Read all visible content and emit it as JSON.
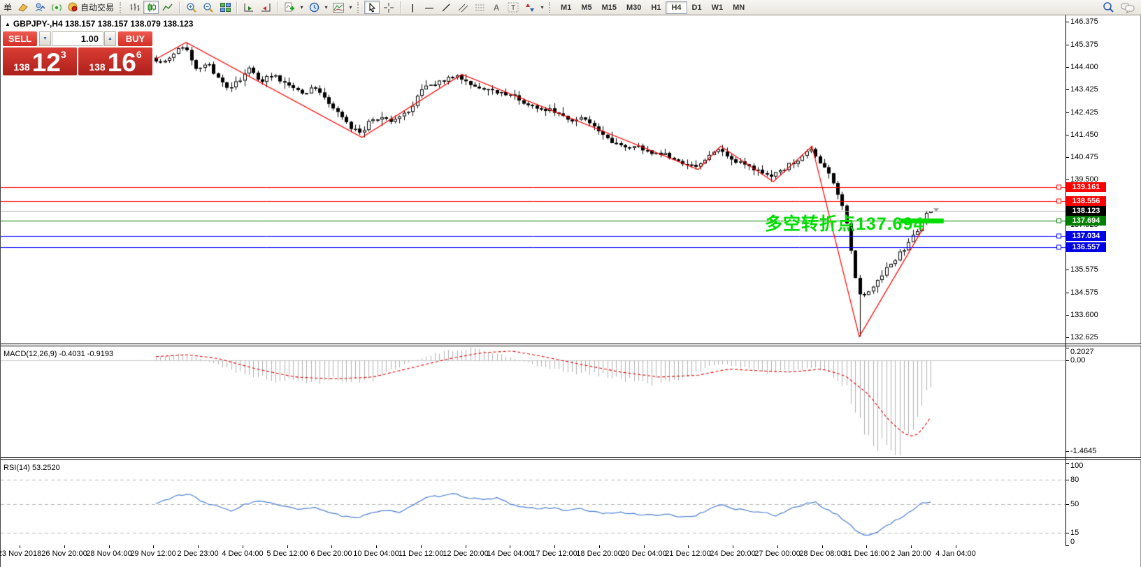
{
  "toolbar": {
    "left_label": "单",
    "auto_trading_label": "自动交易",
    "timeframes": [
      "M1",
      "M5",
      "M15",
      "M30",
      "H1",
      "H4",
      "D1",
      "W1",
      "MN"
    ],
    "active_timeframe": "H4"
  },
  "icons": {
    "collapse": "▲",
    "dropdown": "▾",
    "spinner_down": "▼",
    "spinner_up": "▲",
    "vline": "|",
    "hline": "―",
    "trendline": "/",
    "text_tool": "A",
    "label_tool": "T"
  },
  "chart": {
    "title": "GBPJPY-,H4  138.157 138.157 138.079 138.123"
  },
  "trade_panel": {
    "sell_label": "SELL",
    "buy_label": "BUY",
    "volume": "1.00",
    "sell_price": {
      "big": "138",
      "main": "12",
      "sup": "3"
    },
    "buy_price": {
      "big": "138",
      "main": "16",
      "sup": "6"
    }
  },
  "annotation": {
    "text": "多空转折点137.694",
    "color": "#00dd00"
  },
  "macd_panel": {
    "label": "MACD(12,26,9) -0.4031 -0.9193"
  },
  "rsi_panel": {
    "label": "RSI(14) 53.2520"
  },
  "levels": [
    {
      "label": "139.161",
      "value": 139.161,
      "line_color": "#ff0000",
      "badge_color": "#ff0000",
      "current": false
    },
    {
      "label": "138.556",
      "value": 138.556,
      "line_color": "#ff0000",
      "badge_color": "#ff0000",
      "current": false
    },
    {
      "label": "138.123",
      "value": 138.123,
      "line_color": "#b4b4b4",
      "badge_color": "#000000",
      "current": true
    },
    {
      "label": "137.694",
      "value": 137.694,
      "line_color": "#008000",
      "badge_color": "#008000",
      "current": false
    },
    {
      "label": "137.034",
      "value": 137.034,
      "line_color": "#0000ff",
      "badge_color": "#0000e6",
      "current": false
    },
    {
      "label": "136.557",
      "value": 136.557,
      "line_color": "#0000ff",
      "badge_color": "#0000e6",
      "current": false
    }
  ],
  "time_axis": [
    "23 Nov 2018",
    "26 Nov 20:00",
    "28 Nov 04:00",
    "29 Nov 12:00",
    "2 Dec 23:00",
    "4 Dec 04:00",
    "5 Dec 12:00",
    "6 Dec 20:00",
    "10 Dec 04:00",
    "11 Dec 12:00",
    "12 Dec 20:00",
    "14 Dec 04:00",
    "17 Dec 12:00",
    "18 Dec 20:00",
    "20 Dec 04:00",
    "21 Dec 12:00",
    "24 Dec 20:00",
    "27 Dec 00:00",
    "28 Dec 08:00",
    "31 Dec 16:00",
    "2 Jan 20:00",
    "4 Jan 04:00"
  ],
  "chart_data": {
    "type": "candlestick",
    "symbol": "GBPJPY-",
    "timeframe": "H4",
    "ohlc_readout": {
      "open": 138.157,
      "high": 138.157,
      "low": 138.079,
      "close": 138.123
    },
    "current_price": 138.123,
    "price_range": [
      132.625,
      146.375
    ],
    "price_ticks": [
      146.375,
      145.375,
      144.4,
      143.425,
      142.425,
      141.45,
      140.475,
      139.5,
      137.525,
      135.575,
      134.575,
      133.6,
      132.625
    ],
    "horizontal_levels": [
      139.161,
      138.556,
      138.123,
      137.694,
      137.034,
      136.557
    ],
    "turning_point": 137.694,
    "price_anchors": [
      [
        0,
        144.8
      ],
      [
        0.012,
        144.55
      ],
      [
        0.025,
        144.95
      ],
      [
        0.039,
        145.35
      ],
      [
        0.051,
        144.4
      ],
      [
        0.07,
        144.55
      ],
      [
        0.087,
        143.7
      ],
      [
        0.097,
        143.3
      ],
      [
        0.111,
        143.9
      ],
      [
        0.123,
        144.3
      ],
      [
        0.138,
        143.85
      ],
      [
        0.156,
        143.95
      ],
      [
        0.174,
        143.55
      ],
      [
        0.192,
        143.3
      ],
      [
        0.21,
        143.5
      ],
      [
        0.224,
        142.9
      ],
      [
        0.242,
        142.3
      ],
      [
        0.251,
        141.75
      ],
      [
        0.266,
        141.5
      ],
      [
        0.278,
        142.0
      ],
      [
        0.291,
        142.2
      ],
      [
        0.305,
        141.95
      ],
      [
        0.319,
        142.3
      ],
      [
        0.332,
        142.6
      ],
      [
        0.346,
        143.4
      ],
      [
        0.359,
        143.6
      ],
      [
        0.377,
        143.9
      ],
      [
        0.395,
        144.0
      ],
      [
        0.409,
        143.7
      ],
      [
        0.422,
        143.45
      ],
      [
        0.431,
        143.55
      ],
      [
        0.445,
        143.2
      ],
      [
        0.458,
        143.3
      ],
      [
        0.472,
        142.9
      ],
      [
        0.486,
        142.7
      ],
      [
        0.499,
        142.55
      ],
      [
        0.513,
        142.6
      ],
      [
        0.526,
        142.3
      ],
      [
        0.54,
        142.1
      ],
      [
        0.553,
        142.2
      ],
      [
        0.567,
        141.8
      ],
      [
        0.58,
        141.4
      ],
      [
        0.594,
        141.1
      ],
      [
        0.607,
        141.0
      ],
      [
        0.621,
        140.9
      ],
      [
        0.634,
        140.8
      ],
      [
        0.648,
        140.6
      ],
      [
        0.661,
        140.6
      ],
      [
        0.675,
        140.3
      ],
      [
        0.688,
        140.1
      ],
      [
        0.702,
        140.0
      ],
      [
        0.716,
        140.5
      ],
      [
        0.729,
        140.85
      ],
      [
        0.743,
        140.3
      ],
      [
        0.756,
        140.2
      ],
      [
        0.77,
        140.0
      ],
      [
        0.783,
        139.9
      ],
      [
        0.797,
        139.6
      ],
      [
        0.81,
        139.9
      ],
      [
        0.824,
        140.2
      ],
      [
        0.838,
        140.6
      ],
      [
        0.847,
        140.85
      ],
      [
        0.86,
        140.3
      ],
      [
        0.869,
        139.8
      ],
      [
        0.878,
        139.3
      ],
      [
        0.887,
        138.6
      ],
      [
        0.896,
        137.3
      ],
      [
        0.903,
        135.6
      ],
      [
        0.91,
        134.4
      ],
      [
        0.919,
        134.5
      ],
      [
        0.928,
        134.8
      ],
      [
        0.937,
        135.1
      ],
      [
        0.946,
        135.6
      ],
      [
        0.955,
        136.0
      ],
      [
        0.964,
        136.3
      ],
      [
        0.973,
        136.6
      ],
      [
        0.982,
        137.1
      ],
      [
        0.991,
        137.6
      ],
      [
        1,
        138.12
      ]
    ],
    "zigzag": [
      [
        0,
        144.75
      ],
      [
        0.039,
        145.47
      ],
      [
        0.266,
        141.33
      ],
      [
        0.395,
        144.08
      ],
      [
        0.7,
        139.93
      ],
      [
        0.729,
        140.95
      ],
      [
        0.797,
        139.4
      ],
      [
        0.847,
        140.95
      ],
      [
        0.908,
        132.65
      ],
      [
        0.99,
        137.35
      ]
    ],
    "crash_low": {
      "frac": 0.908,
      "price": 132.65
    },
    "highlight_bar": {
      "price": 137.694,
      "x_frac_start": 0.961,
      "x_frac_end": 1.017,
      "thickness": 7
    },
    "macd": {
      "params": [
        12,
        26,
        9
      ],
      "last_main": -0.4031,
      "last_signal": -0.9193,
      "range": [
        -1.4645,
        0.2027
      ],
      "axis_labels": [
        {
          "label": "0.2027",
          "value": 0.2027
        },
        {
          "label": "0.00",
          "value": 0
        },
        {
          "label": "-1.4645",
          "value": -1.4645
        }
      ],
      "hist_anchors": [
        [
          0,
          0.05
        ],
        [
          0.03,
          0.1
        ],
        [
          0.06,
          0.02
        ],
        [
          0.09,
          -0.12
        ],
        [
          0.12,
          -0.26
        ],
        [
          0.16,
          -0.32
        ],
        [
          0.2,
          -0.36
        ],
        [
          0.23,
          -0.28
        ],
        [
          0.27,
          -0.38
        ],
        [
          0.3,
          -0.18
        ],
        [
          0.33,
          -0.02
        ],
        [
          0.36,
          0.1
        ],
        [
          0.4,
          0.2
        ],
        [
          0.43,
          0.14
        ],
        [
          0.46,
          0.04
        ],
        [
          0.49,
          -0.08
        ],
        [
          0.52,
          -0.16
        ],
        [
          0.56,
          -0.22
        ],
        [
          0.6,
          -0.3
        ],
        [
          0.64,
          -0.36
        ],
        [
          0.68,
          -0.28
        ],
        [
          0.71,
          -0.12
        ],
        [
          0.73,
          -0.06
        ],
        [
          0.76,
          -0.12
        ],
        [
          0.79,
          -0.22
        ],
        [
          0.82,
          -0.16
        ],
        [
          0.85,
          -0.12
        ],
        [
          0.87,
          -0.22
        ],
        [
          0.89,
          -0.45
        ],
        [
          0.9,
          -0.7
        ],
        [
          0.91,
          -1.0
        ],
        [
          0.925,
          -1.25
        ],
        [
          0.945,
          -1.4645
        ],
        [
          0.96,
          -1.35
        ],
        [
          0.975,
          -1.1
        ],
        [
          0.985,
          -0.8
        ],
        [
          0.993,
          -0.55
        ],
        [
          1,
          -0.4031
        ]
      ],
      "signal_anchors": [
        [
          0,
          0.06
        ],
        [
          0.04,
          0.09
        ],
        [
          0.08,
          0.03
        ],
        [
          0.13,
          -0.14
        ],
        [
          0.18,
          -0.27
        ],
        [
          0.23,
          -0.3
        ],
        [
          0.28,
          -0.27
        ],
        [
          0.33,
          -0.12
        ],
        [
          0.38,
          0.03
        ],
        [
          0.42,
          0.12
        ],
        [
          0.46,
          0.15
        ],
        [
          0.5,
          0.06
        ],
        [
          0.55,
          -0.07
        ],
        [
          0.6,
          -0.19
        ],
        [
          0.65,
          -0.27
        ],
        [
          0.7,
          -0.24
        ],
        [
          0.74,
          -0.14
        ],
        [
          0.78,
          -0.17
        ],
        [
          0.82,
          -0.19
        ],
        [
          0.86,
          -0.14
        ],
        [
          0.89,
          -0.25
        ],
        [
          0.92,
          -0.55
        ],
        [
          0.945,
          -0.95
        ],
        [
          0.965,
          -1.18
        ],
        [
          0.98,
          -1.24
        ],
        [
          0.99,
          -1.1
        ],
        [
          1,
          -0.9193
        ]
      ]
    },
    "rsi": {
      "period": 14,
      "last": 53.252,
      "range": [
        0,
        100
      ],
      "guides": [
        80,
        50,
        15
      ],
      "axis_labels": [
        {
          "label": "100",
          "value": 100
        },
        {
          "label": "80",
          "value": 80
        },
        {
          "label": "50",
          "value": 50
        },
        {
          "label": "15",
          "value": 15
        },
        {
          "label": "0",
          "value": 0
        }
      ],
      "anchors": [
        [
          0,
          50
        ],
        [
          0.025,
          60
        ],
        [
          0.043,
          62
        ],
        [
          0.061,
          52
        ],
        [
          0.079,
          47
        ],
        [
          0.097,
          42
        ],
        [
          0.116,
          50
        ],
        [
          0.134,
          54
        ],
        [
          0.152,
          50
        ],
        [
          0.17,
          46
        ],
        [
          0.188,
          43
        ],
        [
          0.206,
          46
        ],
        [
          0.224,
          40
        ],
        [
          0.242,
          35
        ],
        [
          0.26,
          32
        ],
        [
          0.278,
          40
        ],
        [
          0.296,
          43
        ],
        [
          0.314,
          40
        ],
        [
          0.332,
          48
        ],
        [
          0.35,
          58
        ],
        [
          0.368,
          60
        ],
        [
          0.386,
          62
        ],
        [
          0.404,
          58
        ],
        [
          0.422,
          55
        ],
        [
          0.44,
          57
        ],
        [
          0.458,
          50
        ],
        [
          0.477,
          46
        ],
        [
          0.495,
          44
        ],
        [
          0.513,
          46
        ],
        [
          0.531,
          42
        ],
        [
          0.549,
          44
        ],
        [
          0.567,
          40
        ],
        [
          0.585,
          38
        ],
        [
          0.603,
          40
        ],
        [
          0.621,
          38
        ],
        [
          0.639,
          36
        ],
        [
          0.657,
          38
        ],
        [
          0.675,
          35
        ],
        [
          0.693,
          34
        ],
        [
          0.711,
          42
        ],
        [
          0.729,
          50
        ],
        [
          0.747,
          44
        ],
        [
          0.765,
          42
        ],
        [
          0.783,
          40
        ],
        [
          0.801,
          36
        ],
        [
          0.819,
          44
        ],
        [
          0.838,
          50
        ],
        [
          0.851,
          52
        ],
        [
          0.865,
          44
        ],
        [
          0.883,
          35
        ],
        [
          0.901,
          20
        ],
        [
          0.914,
          12
        ],
        [
          0.928,
          14
        ],
        [
          0.941,
          22
        ],
        [
          0.955,
          30
        ],
        [
          0.969,
          38
        ],
        [
          0.982,
          46
        ],
        [
          0.991,
          52
        ],
        [
          1,
          53.25
        ]
      ]
    },
    "colors": {
      "bull": "#ffffff",
      "bear": "#000000",
      "wick": "#000000",
      "zigzag": "#ff0000",
      "macd_hist": "#b2b2b2",
      "macd_signal": "#e60000",
      "rsi_line": "#4a7fd4",
      "guide": "#b8b8b8",
      "highlight": "#00dd00"
    }
  }
}
